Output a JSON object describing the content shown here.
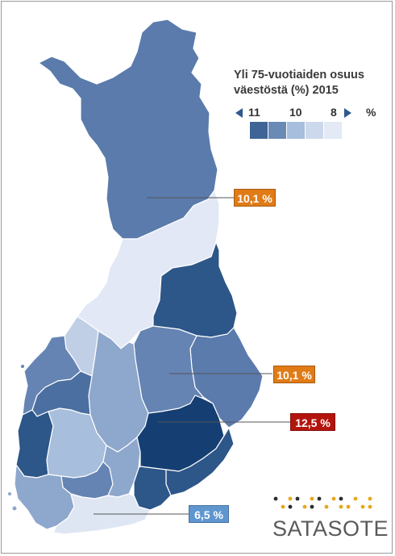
{
  "title_line1": "Yli 75-vuotiaiden osuus",
  "title_line2": "väestöstä (%) 2015",
  "legend": {
    "left_label": "11",
    "mid_label": "10",
    "right_label": "8",
    "unit": "%",
    "left_arrow": "arrow-left-icon",
    "right_arrow": "arrow-right-icon",
    "colors": [
      "#3e6595",
      "#6a8ab6",
      "#a7bedc",
      "#ccd9ec",
      "#e3eaf6"
    ]
  },
  "callouts": [
    {
      "label": "10,1 %",
      "color": "#e07b16"
    },
    {
      "label": "10,1 %",
      "color": "#e07b16"
    },
    {
      "label": "12,5 %",
      "color": "#b3150d"
    },
    {
      "label": "6,5 %",
      "color": "#5f96d0"
    }
  ],
  "logo": {
    "text": "SATASOTE",
    "dot_colors": [
      "#2c2c2c",
      "#e8a81d"
    ]
  },
  "region_colors": {
    "darkest": "#153f73",
    "dark": "#2d5689",
    "mid_dark": "#4b6fa0",
    "mid": "#6584b3",
    "light": "#9db4d4",
    "pale": "#c7d4e9",
    "palest": "#e2e8f5"
  }
}
